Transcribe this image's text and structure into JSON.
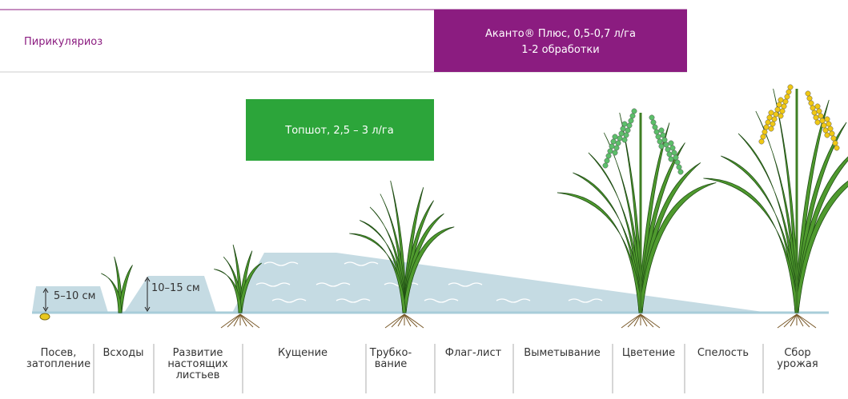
{
  "header": {
    "disease": "Пирикуляриоз",
    "product": {
      "name": "Аканто® Плюс, 0,5-0,7 л/га",
      "note": "1-2 обработки"
    }
  },
  "treatment": "Топшот, 2,5 – 3 л/га",
  "water_depths": [
    "5–10 см",
    "10–15 см"
  ],
  "stages": [
    {
      "lines": [
        "Посев,",
        "затопление"
      ]
    },
    {
      "lines": [
        "Всходы"
      ]
    },
    {
      "lines": [
        "Развитие",
        "настоящих",
        "листьев"
      ]
    },
    {
      "lines": [
        "Кущение"
      ]
    },
    {
      "lines": [
        "Трубко-",
        "вание"
      ]
    },
    {
      "lines": [
        "Флаг-лист"
      ]
    },
    {
      "lines": [
        "Выметывание"
      ]
    },
    {
      "lines": [
        "Цветение"
      ]
    },
    {
      "lines": [
        "Спелость"
      ]
    },
    {
      "lines": [
        "Сбор",
        "урожая"
      ]
    }
  ]
}
